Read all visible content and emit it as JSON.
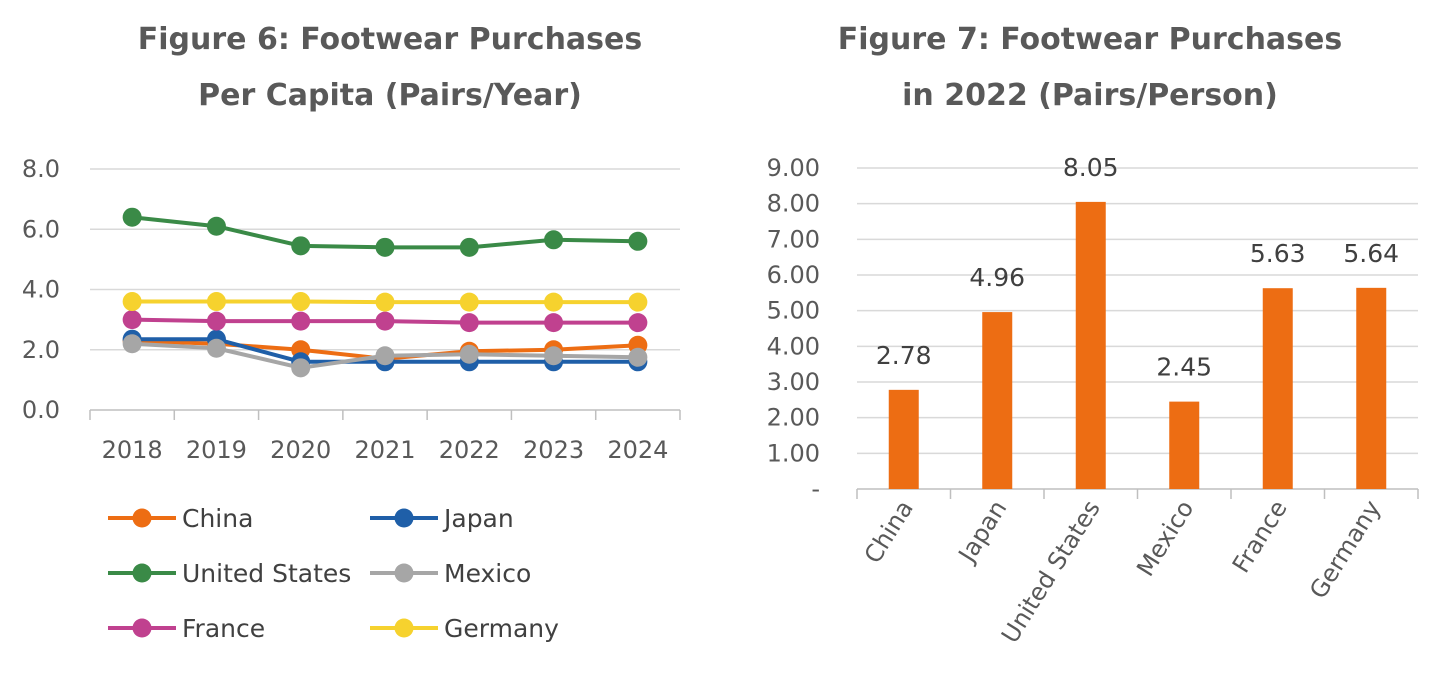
{
  "chart_data": [
    {
      "type": "line",
      "title_line1": "Figure 6:  Footwear Purchases",
      "title_line2": "Per Capita (Pairs/Year)",
      "x": [
        "2018",
        "2019",
        "2020",
        "2021",
        "2022",
        "2023",
        "2024"
      ],
      "ylim": [
        0,
        8
      ],
      "yticks": [
        "0.0",
        "2.0",
        "4.0",
        "6.0",
        "8.0"
      ],
      "ytick_values": [
        0,
        2,
        4,
        6,
        8
      ],
      "grid": true,
      "legend_position": "bottom",
      "series": [
        {
          "name": "China",
          "color": "#ED6D13",
          "values": [
            2.3,
            2.2,
            2.0,
            1.7,
            1.95,
            2.0,
            2.15
          ]
        },
        {
          "name": "Japan",
          "color": "#1F5FA8",
          "values": [
            2.35,
            2.35,
            1.6,
            1.6,
            1.6,
            1.6,
            1.6
          ]
        },
        {
          "name": "United States",
          "color": "#3A8A47",
          "values": [
            6.4,
            6.1,
            5.45,
            5.4,
            5.4,
            5.65,
            5.6
          ]
        },
        {
          "name": "Mexico",
          "color": "#A6A6A6",
          "values": [
            2.2,
            2.05,
            1.4,
            1.8,
            1.85,
            1.8,
            1.75
          ]
        },
        {
          "name": "France",
          "color": "#C0418F",
          "values": [
            3.0,
            2.95,
            2.95,
            2.95,
            2.9,
            2.9,
            2.9
          ]
        },
        {
          "name": "Germany",
          "color": "#F6D22E",
          "values": [
            3.6,
            3.6,
            3.6,
            3.58,
            3.58,
            3.58,
            3.58
          ]
        }
      ]
    },
    {
      "type": "bar",
      "title_line1": "Figure 7:  Footwear Purchases",
      "title_line2": "in 2022 (Pairs/Person)",
      "categories": [
        "China",
        "Japan",
        "United States",
        "Mexico",
        "France",
        "Germany"
      ],
      "values": [
        2.78,
        4.96,
        8.05,
        2.45,
        5.63,
        5.64
      ],
      "labels": [
        "2.78",
        "4.96",
        "8.05",
        "2.45",
        "5.63",
        "5.64"
      ],
      "color": "#ED6D13",
      "ylim": [
        0,
        9
      ],
      "yticks": [
        "-",
        "1.00",
        "2.00",
        "3.00",
        "4.00",
        "5.00",
        "6.00",
        "7.00",
        "8.00",
        "9.00"
      ],
      "ytick_values": [
        0,
        1,
        2,
        3,
        4,
        5,
        6,
        7,
        8,
        9
      ],
      "grid": true
    }
  ]
}
